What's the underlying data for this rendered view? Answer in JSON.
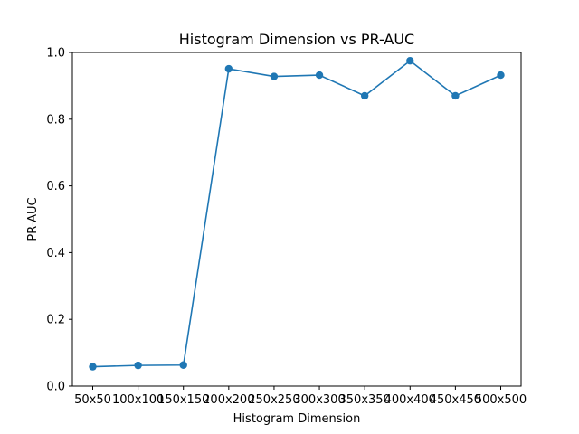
{
  "chart_data": {
    "type": "line",
    "title": "Histogram Dimension vs PR-AUC",
    "xlabel": "Histogram Dimension",
    "ylabel": "PR-AUC",
    "categories": [
      "50x50",
      "100x100",
      "150x150",
      "200x200",
      "250x250",
      "300x300",
      "350x350",
      "400x400",
      "450x450",
      "500x500"
    ],
    "series": [
      {
        "values": [
          0.058,
          0.062,
          0.063,
          0.951,
          0.928,
          0.932,
          0.87,
          0.975,
          0.87,
          0.932
        ]
      }
    ],
    "ylim": [
      0,
      1
    ],
    "yticks": [
      "0.0",
      "0.2",
      "0.4",
      "0.6",
      "0.8",
      "1.0"
    ],
    "grid": false,
    "marker": "circle",
    "color": "#1f77b4"
  }
}
